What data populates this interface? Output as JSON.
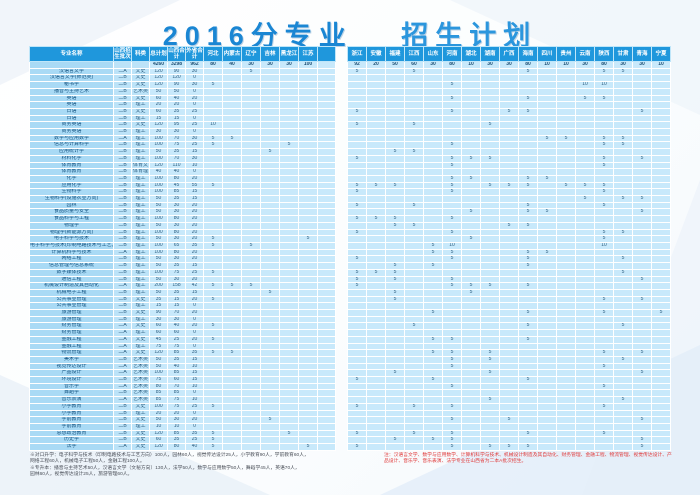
{
  "title": {
    "part1": "2016分专业",
    "part2": "招生计划"
  },
  "colors": {
    "header_blue": "#1f97dc",
    "cell_blue": "#c8e9fb",
    "name_blue": "#a9daf5",
    "title_blue": "#1a86d3",
    "note_red": "#e03a3a"
  },
  "table": {
    "headers_left": [
      "专业名称",
      "山西招生批次",
      "科类",
      "总计划",
      "山西合计",
      "外省合计"
    ],
    "provinces_left": [
      "河北",
      "内蒙古",
      "辽宁",
      "吉林",
      "黑龙江",
      "江苏"
    ],
    "provinces_right": [
      "浙江",
      "安徽",
      "福建",
      "江西",
      "山东",
      "河南",
      "湖北",
      "湖南",
      "广西",
      "海南",
      "四川",
      "贵州",
      "云南",
      "陕西",
      "甘肃",
      "青海",
      "宁夏"
    ],
    "totals": {
      "n": "",
      "b": "",
      "c": "",
      "t": 4260,
      "s": 3298,
      "o": 962,
      "p": {
        "河北": 80,
        "内蒙古": 40,
        "辽宁": 30,
        "吉林": 30,
        "黑龙江": 30,
        "江苏": 100,
        "浙江": 92,
        "安徽": 20,
        "福建": 50,
        "江西": 60,
        "山东": 30,
        "河南": 80,
        "湖北": 10,
        "湖南": 30,
        "广西": 30,
        "海南": 80,
        "四川": 10,
        "贵州": 10,
        "云南": 30,
        "陕西": 80,
        "甘肃": 30,
        "青海": 30,
        "宁夏": 10
      }
    },
    "rows": [
      {
        "n": "汉语言文学",
        "b": "二A",
        "c": "文史",
        "t": 120,
        "s": 90,
        "o": 30,
        "p": {
          "辽宁": 5,
          "浙江": 5,
          "江西": 5,
          "海南": 5,
          "陕西": 5,
          "甘肃": 5
        }
      },
      {
        "n": "汉语言文学(师范类)",
        "b": "二B",
        "c": "文史",
        "t": 120,
        "s": 120,
        "o": 0,
        "p": {}
      },
      {
        "n": "秘书学",
        "b": "二B",
        "c": "文史",
        "t": 120,
        "s": 90,
        "o": 30,
        "p": {
          "河北": 5,
          "河南": 5,
          "云南": 10,
          "陕西": 10
        }
      },
      {
        "n": "播音与主持艺术",
        "b": "二B",
        "c": "艺术类",
        "t": 50,
        "s": 50,
        "o": 0,
        "p": {}
      },
      {
        "n": "英语",
        "b": "二B",
        "c": "文史",
        "t": 60,
        "s": 40,
        "o": 20,
        "p": {
          "河南": 5,
          "海南": 5,
          "云南": 5,
          "陕西": 5
        }
      },
      {
        "n": "英语",
        "b": "二B",
        "c": "理工",
        "t": 20,
        "s": 20,
        "o": 0,
        "p": {}
      },
      {
        "n": "日语",
        "b": "二B",
        "c": "文史",
        "t": 60,
        "s": 35,
        "o": 25,
        "p": {
          "浙江": 5,
          "河南": 5,
          "广西": 5,
          "海南": 5,
          "青海": 5
        }
      },
      {
        "n": "日语",
        "b": "二B",
        "c": "理工",
        "t": 15,
        "s": 15,
        "o": 0,
        "p": {}
      },
      {
        "n": "商务英语",
        "b": "二B",
        "c": "文史",
        "t": 120,
        "s": 95,
        "o": 25,
        "p": {
          "河北": 10,
          "浙江": 5,
          "江西": 5,
          "湖南": 5
        }
      },
      {
        "n": "商务英语",
        "b": "二B",
        "c": "理工",
        "t": 30,
        "s": 30,
        "o": 0,
        "p": {}
      },
      {
        "n": "数学与应用数学",
        "b": "二A",
        "c": "理工",
        "t": 100,
        "s": 70,
        "o": 30,
        "p": {
          "河北": 5,
          "内蒙古": 5,
          "四川": 5,
          "贵州": 5,
          "陕西": 5,
          "甘肃": 5
        }
      },
      {
        "n": "信息与计算科学",
        "b": "二B",
        "c": "理工",
        "t": 100,
        "s": 75,
        "o": 25,
        "p": {
          "河北": 5,
          "黑龙江": 5,
          "河南": 5,
          "陕西": 5,
          "甘肃": 5
        }
      },
      {
        "n": "应用统计学",
        "b": "二B",
        "c": "理工",
        "t": 50,
        "s": 35,
        "o": 15,
        "p": {
          "吉林": 5,
          "福建": 5,
          "江西": 5
        }
      },
      {
        "n": "材料化学",
        "b": "二B",
        "c": "理工",
        "t": 100,
        "s": 70,
        "o": 30,
        "p": {
          "浙江": 5,
          "河南": 5,
          "湖北": 5,
          "湖南": 5,
          "陕西": 5,
          "青海": 5
        }
      },
      {
        "n": "体育教育",
        "b": "二B",
        "c": "体育文",
        "t": 120,
        "s": 110,
        "o": 10,
        "p": {
          "河南": 5,
          "陕西": 5
        }
      },
      {
        "n": "体育教育",
        "b": "二B",
        "c": "体育理",
        "t": 40,
        "s": 40,
        "o": 0,
        "p": {}
      },
      {
        "n": "化学",
        "b": "二B",
        "c": "理工",
        "t": 100,
        "s": 80,
        "o": 20,
        "p": {
          "河南": 5,
          "湖北": 5,
          "海南": 5,
          "四川": 5
        }
      },
      {
        "n": "应用化学",
        "b": "二B",
        "c": "理工",
        "t": 100,
        "s": 45,
        "o": 55,
        "p": {
          "河北": 5,
          "浙江": 5,
          "安徽": 5,
          "福建": 5,
          "河南": 5,
          "湖南": 5,
          "广西": 5,
          "海南": 5,
          "贵州": 5,
          "云南": 5,
          "陕西": 5
        }
      },
      {
        "n": "生物科学",
        "b": "二B",
        "c": "理工",
        "t": 100,
        "s": 85,
        "o": 15,
        "p": {
          "浙江": 5,
          "河南": 5,
          "陕西": 5
        }
      },
      {
        "n": "生物科学(设施农业方向)",
        "b": "二B",
        "c": "理工",
        "t": 50,
        "s": 35,
        "o": 15,
        "p": {
          "云南": 5,
          "甘肃": 5,
          "青海": 5
        }
      },
      {
        "n": "园林",
        "b": "二B",
        "c": "理工",
        "t": 50,
        "s": 30,
        "o": 20,
        "p": {
          "浙江": 5,
          "江西": 5,
          "海南": 5,
          "陕西": 5
        }
      },
      {
        "n": "食品质量与安全",
        "b": "二B",
        "c": "理工",
        "t": 50,
        "s": 30,
        "o": 20,
        "p": {
          "湖北": 5,
          "海南": 5,
          "四川": 5,
          "青海": 5
        }
      },
      {
        "n": "食品科学与工程",
        "b": "二B",
        "c": "理工",
        "t": 100,
        "s": 80,
        "o": 20,
        "p": {
          "浙江": 5,
          "安徽": 5,
          "福建": 5,
          "河南": 5
        }
      },
      {
        "n": "物理学",
        "b": "二B",
        "c": "理工",
        "t": 50,
        "s": 30,
        "o": 20,
        "p": {
          "福建": 5,
          "江西": 5,
          "广西": 5,
          "海南": 5
        }
      },
      {
        "n": "物理学(新能源方向)",
        "b": "二B",
        "c": "理工",
        "t": 100,
        "s": 80,
        "o": 20,
        "p": {
          "浙江": 5,
          "河南": 5,
          "陕西": 5,
          "甘肃": 5
        }
      },
      {
        "n": "电子科学与技术",
        "b": "二B",
        "c": "理工",
        "t": 50,
        "s": 30,
        "o": 20,
        "p": {
          "河北": 5,
          "江苏": 5,
          "湖北": 5,
          "陕西": 5
        }
      },
      {
        "n": "电子科学与技术(印制电路技术与工艺方向)",
        "b": "二B",
        "c": "理工",
        "t": 100,
        "s": 65,
        "o": 35,
        "p": {
          "河北": 5,
          "辽宁": 5,
          "山东": 5,
          "河南": 10,
          "陕西": 10
        }
      },
      {
        "n": "计算机科学与技术",
        "b": "二A",
        "c": "理工",
        "t": 100,
        "s": 80,
        "o": 20,
        "p": {
          "山东": 5,
          "河南": 5,
          "海南": 5,
          "四川": 5
        }
      },
      {
        "n": "网络工程",
        "b": "二B",
        "c": "理工",
        "t": 50,
        "s": 30,
        "o": 20,
        "p": {
          "浙江": 5,
          "河南": 5,
          "海南": 5,
          "甘肃": 5
        }
      },
      {
        "n": "信息管理与信息系统",
        "b": "二B",
        "c": "理工",
        "t": 50,
        "s": 35,
        "o": 15,
        "p": {
          "福建": 5,
          "山东": 5,
          "海南": 5
        }
      },
      {
        "n": "数字媒体技术",
        "b": "二B",
        "c": "理工",
        "t": 100,
        "s": 75,
        "o": 25,
        "p": {
          "河北": 5,
          "浙江": 5,
          "安徽": 5,
          "福建": 5,
          "甘肃": 5
        }
      },
      {
        "n": "通信工程",
        "b": "二B",
        "c": "理工",
        "t": 50,
        "s": 30,
        "o": 20,
        "p": {
          "浙江": 5,
          "福建": 5,
          "河南": 5,
          "青海": 5
        }
      },
      {
        "n": "机械设计制造及其自动化",
        "b": "二A",
        "c": "理工",
        "t": 200,
        "s": 158,
        "o": 42,
        "p": {
          "河北": 5,
          "内蒙古": 5,
          "辽宁": 5,
          "浙江": 5,
          "河南": 5,
          "湖北": 5,
          "湖南": 5,
          "海南": 5
        }
      },
      {
        "n": "机械电子工程",
        "b": "二B",
        "c": "理工",
        "t": 50,
        "s": 35,
        "o": 15,
        "p": {
          "吉林": 5,
          "福建": 5,
          "湖北": 5
        }
      },
      {
        "n": "公共事业管理",
        "b": "二B",
        "c": "文史",
        "t": 35,
        "s": 15,
        "o": 20,
        "p": {
          "河北": 5,
          "福建": 5,
          "陕西": 5,
          "青海": 5
        }
      },
      {
        "n": "公共事业管理",
        "b": "二B",
        "c": "理工",
        "t": 15,
        "s": 15,
        "o": 0,
        "p": {}
      },
      {
        "n": "旅游管理",
        "b": "二B",
        "c": "文史",
        "t": 90,
        "s": 70,
        "o": 20,
        "p": {
          "山东": 5,
          "海南": 5,
          "陕西": 5,
          "宁夏": 5
        }
      },
      {
        "n": "旅游管理",
        "b": "二B",
        "c": "理工",
        "t": 30,
        "s": 30,
        "o": 0,
        "p": {}
      },
      {
        "n": "财务管理",
        "b": "二A",
        "c": "文史",
        "t": 60,
        "s": 40,
        "o": 20,
        "p": {
          "河北": 5,
          "江西": 5,
          "海南": 5,
          "甘肃": 5
        }
      },
      {
        "n": "财务管理",
        "b": "二A",
        "c": "理工",
        "t": 60,
        "s": 60,
        "o": 0,
        "p": {}
      },
      {
        "n": "金融工程",
        "b": "二A",
        "c": "文史",
        "t": 45,
        "s": 25,
        "o": 20,
        "p": {
          "河北": 5,
          "山东": 5,
          "河南": 5,
          "海南": 5
        }
      },
      {
        "n": "金融工程",
        "b": "二A",
        "c": "理工",
        "t": 75,
        "s": 75,
        "o": 0,
        "p": {}
      },
      {
        "n": "物流管理",
        "b": "二A",
        "c": "文史",
        "t": 120,
        "s": 85,
        "o": 35,
        "p": {
          "河北": 5,
          "内蒙古": 5,
          "山东": 5,
          "河南": 5,
          "湖南": 5,
          "陕西": 5,
          "青海": 5
        }
      },
      {
        "n": "美术学",
        "b": "二B",
        "c": "艺术类",
        "t": 50,
        "s": 35,
        "o": 15,
        "p": {
          "河南": 5,
          "湖南": 5,
          "甘肃": 5
        }
      },
      {
        "n": "视觉传达设计",
        "b": "二A",
        "c": "艺术类",
        "t": 50,
        "s": 40,
        "o": 10,
        "p": {
          "河南": 5,
          "陕西": 5
        }
      },
      {
        "n": "产品设计",
        "b": "二A",
        "c": "艺术类",
        "t": 100,
        "s": 85,
        "o": 15,
        "p": {
          "福建": 5,
          "湖南": 5,
          "青海": 5
        }
      },
      {
        "n": "环境设计",
        "b": "二B",
        "c": "艺术类",
        "t": 75,
        "s": 60,
        "o": 15,
        "p": {
          "浙江": 5,
          "山东": 5,
          "海南": 5
        }
      },
      {
        "n": "音乐学",
        "b": "二A",
        "c": "艺术类",
        "t": 80,
        "s": 70,
        "o": 10,
        "p": {
          "河南": 5,
          "陕西": 5
        }
      },
      {
        "n": "舞蹈学",
        "b": "二B",
        "c": "艺术类",
        "t": 85,
        "s": 85,
        "o": 0,
        "p": {}
      },
      {
        "n": "音乐表演",
        "b": "二A",
        "c": "艺术类",
        "t": 85,
        "s": 75,
        "o": 10,
        "p": {
          "湖南": 5,
          "甘肃": 5
        }
      },
      {
        "n": "小学教育",
        "b": "二B",
        "c": "文史",
        "t": 100,
        "s": 75,
        "o": 25,
        "p": {
          "河北": 5,
          "浙江": 5,
          "江西": 5,
          "河南": 5,
          "陕西": 5
        }
      },
      {
        "n": "小学教育",
        "b": "二B",
        "c": "理工",
        "t": 20,
        "s": 20,
        "o": 0,
        "p": {}
      },
      {
        "n": "学前教育",
        "b": "二B",
        "c": "文史",
        "t": 50,
        "s": 30,
        "o": 20,
        "p": {
          "吉林": 5,
          "河南": 5,
          "广西": 5,
          "青海": 5
        }
      },
      {
        "n": "学前教育",
        "b": "二B",
        "c": "理工",
        "t": 10,
        "s": 10,
        "o": 0,
        "p": {}
      },
      {
        "n": "思想政治教育",
        "b": "二B",
        "c": "文史",
        "t": 120,
        "s": 85,
        "o": 35,
        "p": {
          "河北": 5,
          "黑龙江": 5,
          "浙江": 5,
          "江西": 5,
          "河南": 5,
          "海南": 5,
          "陕西": 5
        }
      },
      {
        "n": "历史学",
        "b": "二B",
        "c": "文史",
        "t": 60,
        "s": 35,
        "o": 25,
        "p": {
          "河北": 5,
          "福建": 5,
          "山东": 5,
          "河南": 5,
          "青海": 5
        }
      },
      {
        "n": "法学",
        "b": "二A",
        "c": "文史",
        "t": 120,
        "s": 80,
        "o": 40,
        "p": {
          "河北": 5,
          "江苏": 5,
          "浙江": 5,
          "河南": 5,
          "湖南": 5,
          "广西": 5,
          "海南": 5,
          "青海": 5
        }
      }
    ]
  },
  "notes_left": [
    "※对口升学：电子科学与技术（印制电路技术与工艺方向）100人，园林60人，视觉传达设计25人，小学教育90人，学前教育60人，",
    "网络工程60人，机械电子工程50人，金融工程100人。",
    "※专升本：播音与主持艺术50人，汉语言文学（文秘方向）130人，法学50人，数学与应用数学50人，舞蹈学45人，英语70人，",
    "园林60人，视觉传达设计25人，旅游管理60人。"
  ],
  "note_right": "注：汉语言文学、数学与应用数学、计算机科学与技术、机械设计制造及其自动化、财务管理、金融工程、物流管理、视觉传达设计、产品设计、音乐学、音乐表演、法学专业在山西省为二本A批次招生。"
}
